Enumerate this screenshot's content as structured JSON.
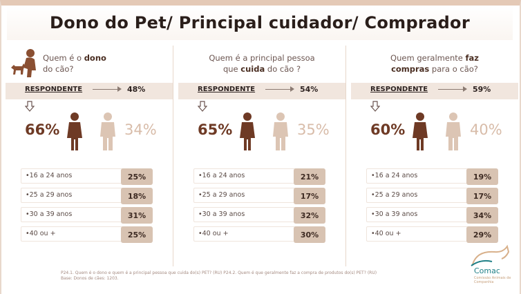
{
  "title": "Dono do Pet/ Principal cuidador/ Comprador",
  "panels": [
    {
      "question_line1_pre": "Quem é o ",
      "question_line1_bold": "dono",
      "question_line2": "do cão?",
      "respondente_label": "RESPONDENTE",
      "respondente_pct": "48%",
      "female_pct": "66%",
      "male_pct": "34%",
      "ages": [
        {
          "label": "•16 a 24 anos",
          "value": "25%"
        },
        {
          "label": "•25 a 29 anos",
          "value": "18%"
        },
        {
          "label": "•30 a 39 anos",
          "value": "31%"
        },
        {
          "label": "•40 ou +",
          "value": "25%"
        }
      ]
    },
    {
      "question_line1_pre": "Quem é a principal pessoa",
      "question_line2_pre": "que ",
      "question_line2_bold": "cuida",
      "question_line2_post": " do cão ?",
      "respondente_label": "RESPONDENTE",
      "respondente_pct": "54%",
      "female_pct": "65%",
      "male_pct": "35%",
      "ages": [
        {
          "label": "•16 a 24 anos",
          "value": "21%"
        },
        {
          "label": "•25 a 29 anos",
          "value": "17%"
        },
        {
          "label": "•30 a 39 anos",
          "value": "32%"
        },
        {
          "label": "•40 ou +",
          "value": "30%"
        }
      ]
    },
    {
      "question_line1_pre": "Quem geralmente ",
      "question_line1_bold": "faz",
      "question_line2_bold": "compras",
      "question_line2_post": " para o cão?",
      "respondente_label": "RESPONDENTE",
      "respondente_pct": "59%",
      "female_pct": "60%",
      "male_pct": "40%",
      "ages": [
        {
          "label": "•16 a 24 anos",
          "value": "19%"
        },
        {
          "label": "•25 a 29 anos",
          "value": "17%"
        },
        {
          "label": "•30 a 39 anos",
          "value": "34%"
        },
        {
          "label": "•40 ou +",
          "value": "29%"
        }
      ]
    }
  ],
  "footer_line1": "P24.1. Quem é o dono e quem é a principal pessoa que cuida do(s) PET? (RU) P24.2. Quem é que geralmente faz a compra de produtos do(s) PET? (RU)",
  "footer_line2": "Base: Donos de cães: 1203.",
  "logo_text": "Comac",
  "logo_subtext": "Comissão Animais de Companhia",
  "colors": {
    "accent_dark": "#6e3a25",
    "accent_light": "#d8bca9",
    "value_box": "#d8c3b2",
    "band": "#f1e6de",
    "logo": "#1e7f86"
  },
  "icons": [
    "owner-with-dog-icon",
    "female-figure-icon",
    "male-figure-icon",
    "down-arrow-icon",
    "right-arrow-icon"
  ]
}
